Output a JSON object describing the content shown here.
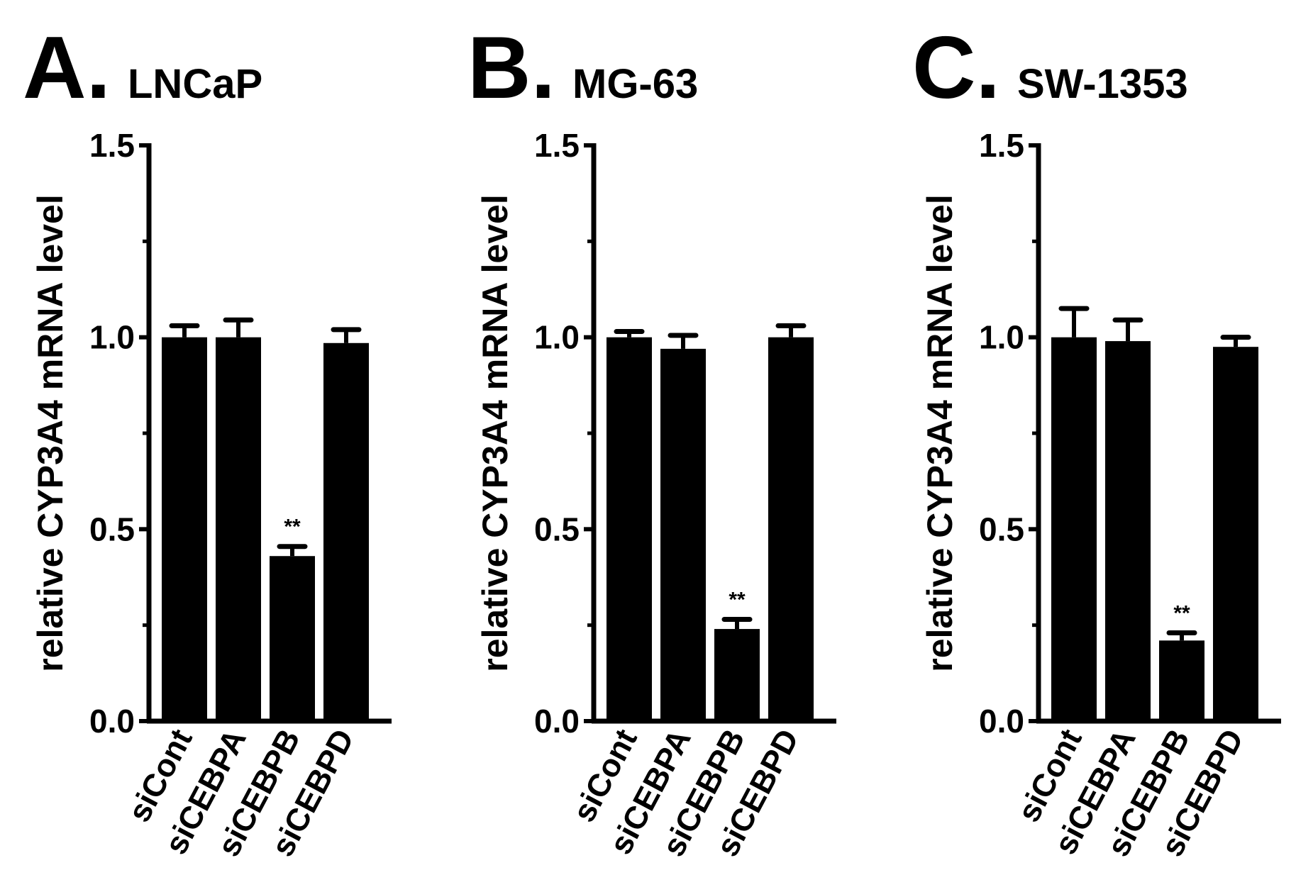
{
  "figure": {
    "chart_data": [
      {
        "type": "bar",
        "panel_letter": "A.",
        "title": "LNCaP",
        "xlabel": "",
        "ylabel": "relative CYP3A4 mRNA level",
        "ylim": [
          0,
          1.5
        ],
        "yticks": [
          "0.0",
          "0.5",
          "1.0",
          "1.5"
        ],
        "categories": [
          "siCont",
          "siCEBPA",
          "siCEBPB",
          "siCEBPD"
        ],
        "values": [
          1.0,
          1.0,
          0.43,
          0.985
        ],
        "errors": [
          0.03,
          0.045,
          0.025,
          0.035
        ],
        "annotations": [
          "",
          "",
          "**",
          ""
        ],
        "bar_color": "#000000"
      },
      {
        "type": "bar",
        "panel_letter": "B.",
        "title": "MG-63",
        "xlabel": "",
        "ylabel": "relative CYP3A4 mRNA level",
        "ylim": [
          0,
          1.5
        ],
        "yticks": [
          "0.0",
          "0.5",
          "1.0",
          "1.5"
        ],
        "categories": [
          "siCont",
          "siCEBPA",
          "siCEBPB",
          "siCEBPD"
        ],
        "values": [
          1.0,
          0.97,
          0.24,
          1.0
        ],
        "errors": [
          0.015,
          0.035,
          0.025,
          0.03
        ],
        "annotations": [
          "",
          "",
          "**",
          ""
        ],
        "bar_color": "#000000"
      },
      {
        "type": "bar",
        "panel_letter": "C.",
        "title": "SW-1353",
        "xlabel": "",
        "ylabel": "relative CYP3A4 mRNA level",
        "ylim": [
          0,
          1.5
        ],
        "yticks": [
          "0.0",
          "0.5",
          "1.0",
          "1.5"
        ],
        "categories": [
          "siCont",
          "siCEBPA",
          "siCEBPB",
          "siCEBPD"
        ],
        "values": [
          1.0,
          0.99,
          0.21,
          0.975
        ],
        "errors": [
          0.075,
          0.055,
          0.02,
          0.025
        ],
        "annotations": [
          "",
          "",
          "**",
          ""
        ],
        "bar_color": "#000000"
      }
    ]
  }
}
